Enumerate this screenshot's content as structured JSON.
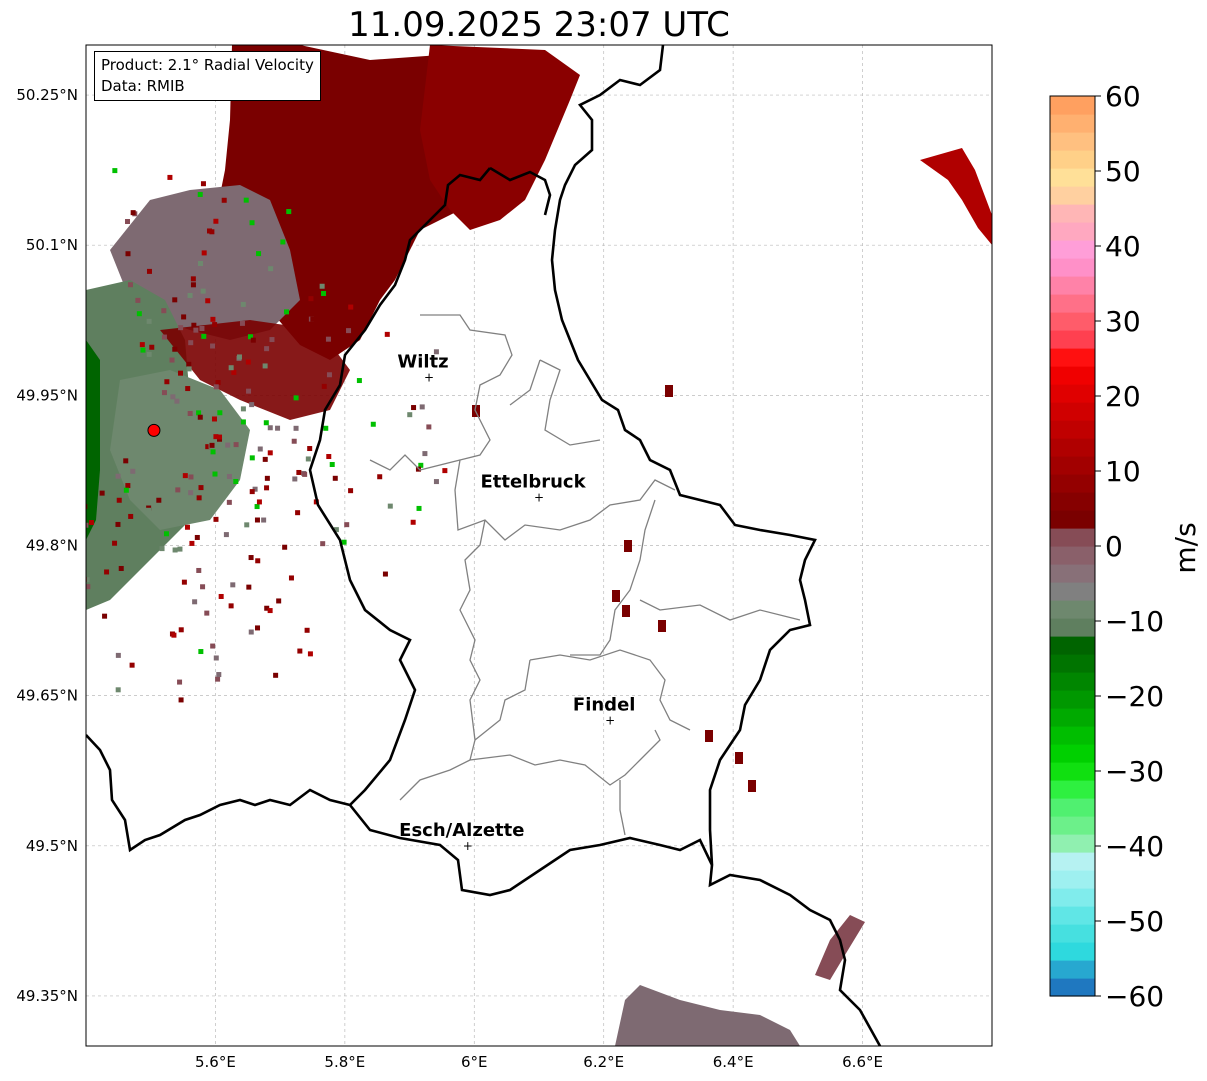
{
  "title": "11.09.2025 23:07 UTC",
  "info_box": {
    "product": "Product: 2.1° Radial Velocity",
    "data": "Data: RMIB"
  },
  "lat_ticks": [
    {
      "value": 50.25,
      "label": "50.25°N"
    },
    {
      "value": 50.1,
      "label": "50.1°N"
    },
    {
      "value": 49.95,
      "label": "49.95°N"
    },
    {
      "value": 49.8,
      "label": "49.8°N"
    },
    {
      "value": 49.65,
      "label": "49.65°N"
    },
    {
      "value": 49.5,
      "label": "49.5°N"
    },
    {
      "value": 49.35,
      "label": "49.35°N"
    }
  ],
  "lon_ticks": [
    {
      "value": 5.6,
      "label": "5.6°E"
    },
    {
      "value": 5.8,
      "label": "5.8°E"
    },
    {
      "value": 6.0,
      "label": "6°E"
    },
    {
      "value": 6.2,
      "label": "6.2°E"
    },
    {
      "value": 6.4,
      "label": "6.4°E"
    },
    {
      "value": 6.6,
      "label": "6.6°E"
    }
  ],
  "extent": {
    "lon_min": 5.4,
    "lon_max": 6.8,
    "lat_min": 49.3,
    "lat_max": 50.3
  },
  "cities": [
    {
      "name": "Wiltz",
      "lon": 5.93,
      "lat": 49.968
    },
    {
      "name": "Ettelbruck",
      "lon": 6.1,
      "lat": 49.848
    },
    {
      "name": "Findel",
      "lon": 6.21,
      "lat": 49.625
    },
    {
      "name": "Esch/Alzette",
      "lon": 5.99,
      "lat": 49.5
    }
  ],
  "radar_site": {
    "lon": 5.505,
    "lat": 49.915
  },
  "colorbar": {
    "unit": "m/s",
    "min": -60,
    "max": 60,
    "ticks": [
      {
        "value": 60,
        "label": "60"
      },
      {
        "value": 50,
        "label": "50"
      },
      {
        "value": 40,
        "label": "40"
      },
      {
        "value": 30,
        "label": "30"
      },
      {
        "value": 20,
        "label": "20"
      },
      {
        "value": 10,
        "label": "10"
      },
      {
        "value": 0,
        "label": "0"
      },
      {
        "value": -10,
        "label": "−10"
      },
      {
        "value": -20,
        "label": "−20"
      },
      {
        "value": -30,
        "label": "−30"
      },
      {
        "value": -40,
        "label": "−40"
      },
      {
        "value": -50,
        "label": "−50"
      },
      {
        "value": -60,
        "label": "−60"
      }
    ],
    "colors": [
      "#1f78c0",
      "#27a8d0",
      "#2ed9de",
      "#46e0e0",
      "#60e6e6",
      "#80ecec",
      "#9ef0f0",
      "#b6f2f2",
      "#90f0b0",
      "#6cf08a",
      "#50f070",
      "#2ef040",
      "#10e010",
      "#00d000",
      "#00be00",
      "#00aa00",
      "#009800",
      "#008600",
      "#007400",
      "#006400",
      "#5f7f5f",
      "#6e886e",
      "#808080",
      "#887078",
      "#8a606a",
      "#864c56",
      "#7a0000",
      "#860000",
      "#940000",
      "#a20000",
      "#b00000",
      "#c00000",
      "#d00000",
      "#e00000",
      "#f00000",
      "#ff1010",
      "#ff4050",
      "#ff5c6a",
      "#ff7088",
      "#ff82a8",
      "#ff90c8",
      "#ff9ed8",
      "#ffa8c0",
      "#ffb6b6",
      "#ffd0a0",
      "#ffe098",
      "#ffd088",
      "#ffc080",
      "#ffb070",
      "#ffa060"
    ]
  },
  "colors": {
    "border_thick": "#000000",
    "border_thin": "#808080",
    "grid": "#bbbbbb",
    "radar_marker": "#ff0000"
  }
}
